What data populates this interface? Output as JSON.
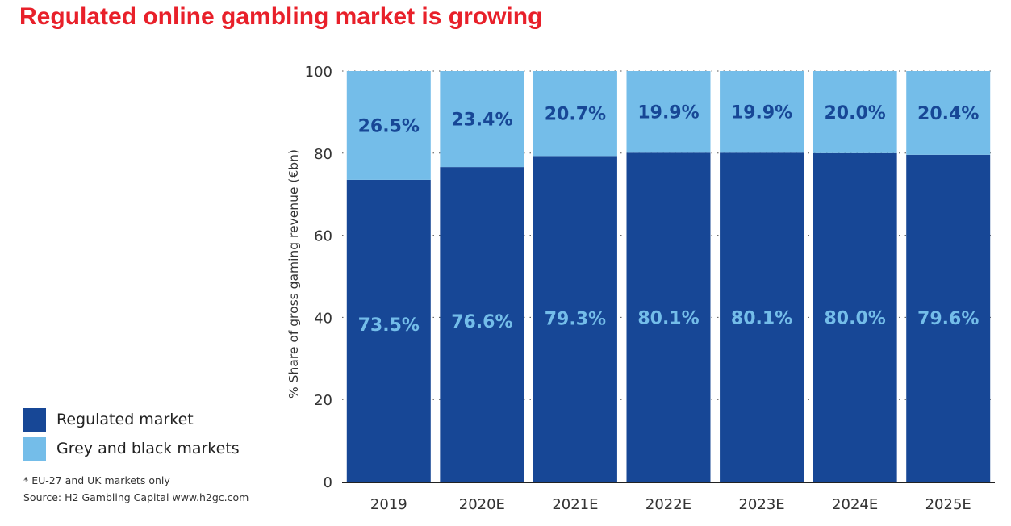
{
  "title": "Regulated online gambling market is growing",
  "legend": [
    {
      "label": "Regulated market",
      "color": "#174796"
    },
    {
      "label": "Grey and black markets",
      "color": "#74bde9"
    }
  ],
  "footnote": "* EU-27 and UK markets only",
  "source": "Source: H2 Gambling Capital www.h2gc.com",
  "chart_data": {
    "type": "bar",
    "stacked": true,
    "categories": [
      "2019",
      "2020E",
      "2021E",
      "2022E",
      "2023E",
      "2024E",
      "2025E"
    ],
    "series": [
      {
        "name": "Regulated market",
        "color": "#174796",
        "label_color": "#74bde9",
        "values": [
          73.5,
          76.6,
          79.3,
          80.1,
          80.1,
          80.0,
          79.6
        ],
        "labels": [
          "73.5%",
          "76.6%",
          "79.3%",
          "80.1%",
          "80.1%",
          "80.0%",
          "79.6%"
        ]
      },
      {
        "name": "Grey and black markets",
        "color": "#74bde9",
        "label_color": "#174796",
        "values": [
          26.5,
          23.4,
          20.7,
          19.9,
          19.9,
          20.0,
          20.4
        ],
        "labels": [
          "26.5%",
          "23.4%",
          "20.7%",
          "19.9%",
          "19.9%",
          "20.0%",
          "20.4%"
        ]
      }
    ],
    "ylabel": "% Share of gross gaming revenue (€bn)",
    "yticks": [
      0,
      20,
      40,
      60,
      80,
      100
    ],
    "ylim": [
      0,
      100
    ],
    "grid": "dotted horizontal"
  }
}
